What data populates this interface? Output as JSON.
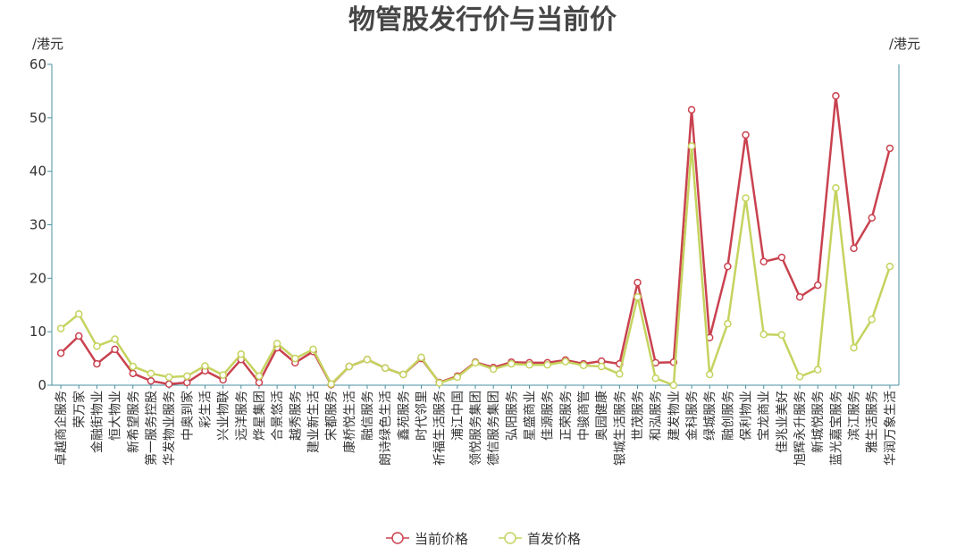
{
  "chart_data": {
    "type": "line",
    "title": "物管股发行价与当前价",
    "y_label": "/港元",
    "y2_label": "/港元",
    "categories": [
      "卓越商企服务",
      "荣万家",
      "金融街物业",
      "恒大物业",
      "新希望服务",
      "第一服务控股",
      "华发物业服务",
      "中奥到家",
      "彩生活",
      "兴业物联",
      "远洋服务",
      "烨星集团",
      "合景悠活",
      "越秀服务",
      "建业新生活",
      "宋都服务",
      "康桥悦生活",
      "融信服务",
      "朗诗绿色生活",
      "鑫苑服务",
      "时代邻里",
      "祈福生活服务",
      "浦江中国",
      "领悦服务集团",
      "德信服务集团",
      "弘阳服务",
      "星盛商业",
      "佳源服务",
      "正荣服务",
      "中骏商管",
      "奥园健康",
      "银城生活服务",
      "世茂服务",
      "和泓服务",
      "建发物业",
      "金科服务",
      "绿城服务",
      "融创服务",
      "保利物业",
      "宝龙商业",
      "佳兆业美好",
      "旭辉永升服务",
      "新城悦服务",
      "蓝光嘉宝服务",
      "滨江服务",
      "雅生活服务",
      "华润万象生活"
    ],
    "series": [
      {
        "name": "当前价格",
        "color": "#c9424f",
        "values": [
          6.0,
          9.2,
          4.0,
          6.7,
          2.2,
          0.8,
          0.2,
          0.5,
          2.7,
          1.0,
          4.8,
          0.5,
          7.0,
          4.2,
          6.3,
          0.1,
          3.5,
          4.8,
          3.2,
          2.0,
          5.0,
          0.5,
          1.7,
          4.3,
          3.3,
          4.3,
          4.2,
          4.2,
          4.7,
          4.0,
          4.5,
          4.0,
          19.2,
          4.2,
          4.3,
          51.5,
          8.9,
          22.2,
          46.8,
          23.1,
          23.9,
          16.5,
          18.7,
          54.1,
          25.6,
          31.3,
          44.3
        ]
      },
      {
        "name": "首发价格",
        "color": "#c5d35f",
        "values": [
          10.6,
          13.3,
          7.3,
          8.6,
          3.5,
          2.2,
          1.5,
          1.7,
          3.6,
          1.9,
          5.8,
          1.7,
          7.8,
          5.0,
          6.7,
          0.2,
          3.5,
          4.8,
          3.2,
          2.0,
          5.2,
          0.4,
          1.5,
          4.2,
          3.0,
          4.0,
          3.8,
          3.8,
          4.4,
          3.7,
          3.5,
          2.1,
          16.5,
          1.3,
          0.0,
          44.7,
          2.0,
          11.5,
          35.0,
          9.5,
          9.4,
          1.6,
          2.9,
          36.9,
          7.0,
          12.3,
          22.2
        ]
      }
    ],
    "ylim": [
      0,
      60
    ],
    "yticks": [
      0,
      10,
      20,
      30,
      40,
      50,
      60
    ],
    "grid": false,
    "legend": "bottom"
  }
}
